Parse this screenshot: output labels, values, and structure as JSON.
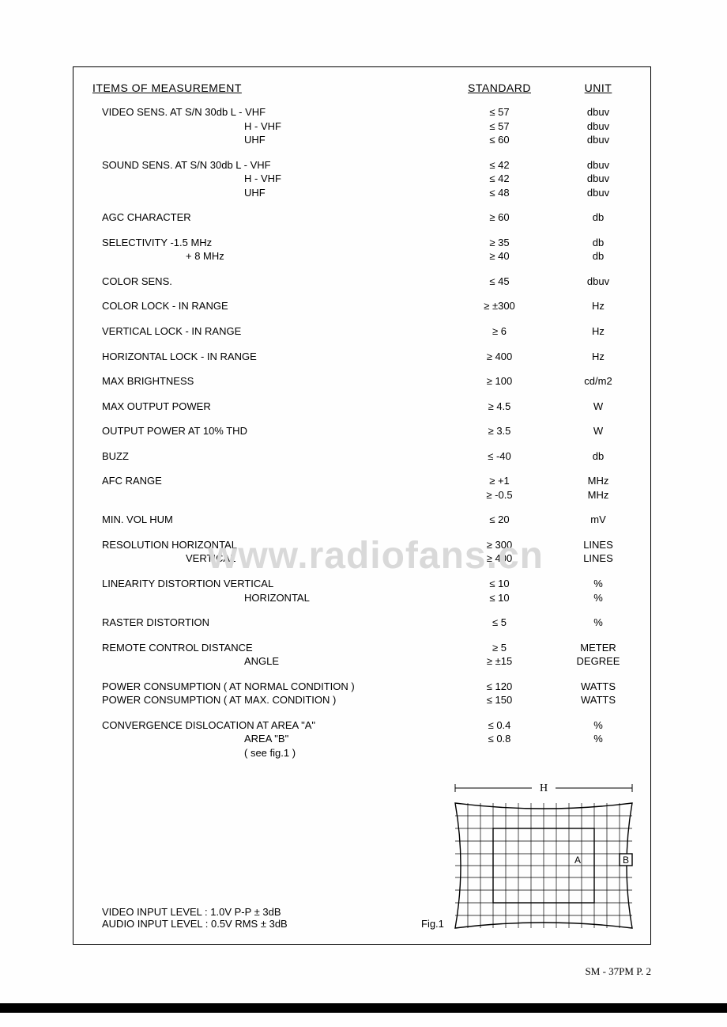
{
  "headers": {
    "items": "ITEMS  OF  MEASUREMENT",
    "standard": "STANDARD",
    "unit": "UNIT"
  },
  "rows": [
    {
      "c1": "VIDEO  SENS.  AT  S/N  30db  L - VHF",
      "c2": "≤ 57",
      "c3": "dbuv"
    },
    {
      "c1": "H - VHF",
      "c2": "≤ 57",
      "c3": "dbuv",
      "indent": true
    },
    {
      "c1": "UHF",
      "c2": "≤ 60",
      "c3": "dbuv",
      "indent": true,
      "gapAfter": true
    },
    {
      "c1": "SOUND  SENS.  AT  S/N  30db  L - VHF",
      "c2": "≤ 42",
      "c3": "dbuv"
    },
    {
      "c1": "H - VHF",
      "c2": "≤ 42",
      "c3": "dbuv",
      "indent": true
    },
    {
      "c1": "UHF",
      "c2": "≤ 48",
      "c3": "dbuv",
      "indent": true,
      "gapAfter": true
    },
    {
      "c1": "AGC  CHARACTER",
      "c2": "≥ 60",
      "c3": "db",
      "gapAfter": true
    },
    {
      "c1": "SELECTIVITY  -1.5 MHz",
      "c2": "≥ 35",
      "c3": "db"
    },
    {
      "c1": "+ 8 MHz",
      "c2": "≥ 40",
      "c3": "db",
      "indent2": true,
      "gapAfter": true
    },
    {
      "c1": "COLOR  SENS.",
      "c2": "≤ 45",
      "c3": "dbuv",
      "gapAfter": true
    },
    {
      "c1": "COLOR  LOCK - IN  RANGE",
      "c2": "≥ ±300",
      "c3": "Hz",
      "gapAfter": true
    },
    {
      "c1": "VERTICAL  LOCK - IN  RANGE",
      "c2": "≥ 6",
      "c3": "Hz",
      "gapAfter": true
    },
    {
      "c1": "HORIZONTAL  LOCK - IN  RANGE",
      "c2": "≥ 400",
      "c3": "Hz",
      "gapAfter": true
    },
    {
      "c1": "MAX  BRIGHTNESS",
      "c2": "≥ 100",
      "c3": "cd/m2",
      "gapAfter": true
    },
    {
      "c1": "MAX  OUTPUT  POWER",
      "c2": "≥ 4.5",
      "c3": "W",
      "gapAfter": true
    },
    {
      "c1": "OUTPUT  POWER  AT  10%  THD",
      "c2": "≥ 3.5",
      "c3": "W",
      "gapAfter": true
    },
    {
      "c1": "BUZZ",
      "c2": "≤ -40",
      "c3": "db",
      "gapAfter": true
    },
    {
      "c1": "AFC  RANGE",
      "c2": "≥ +1",
      "c3": "MHz"
    },
    {
      "c1": "",
      "c2": "≥ -0.5",
      "c3": "MHz",
      "gapAfter": true
    },
    {
      "c1": "MIN.  VOL  HUM",
      "c2": "≤ 20",
      "c3": "mV",
      "gapAfter": true
    },
    {
      "c1": "RESOLUTION  HORIZONTAL",
      "c2": "≥ 300",
      "c3": "LINES"
    },
    {
      "c1": "VERTICAL",
      "c2": "≥ 400",
      "c3": "LINES",
      "indent2": true,
      "gapAfter": true
    },
    {
      "c1": "LINEARITY  DISTORTION  VERTICAL",
      "c2": "≤ 10",
      "c3": "%"
    },
    {
      "c1": "HORIZONTAL",
      "c2": "≤ 10",
      "c3": "%",
      "indent": true,
      "gapAfter": true
    },
    {
      "c1": "RASTER  DISTORTION",
      "c2": "≤ 5",
      "c3": "%",
      "gapAfter": true
    },
    {
      "c1": "REMOTE  CONTROL  DISTANCE",
      "c2": "≥ 5",
      "c3": "METER"
    },
    {
      "c1": "ANGLE",
      "c2": "≥ ±15",
      "c3": "DEGREE",
      "indent": true,
      "gapAfter": true
    },
    {
      "c1": "POWER  CONSUMPTION ( AT NORMAL CONDITION )",
      "c2": "≤ 120",
      "c3": "WATTS"
    },
    {
      "c1": "POWER  CONSUMPTION ( AT MAX. CONDITION )",
      "c2": "≤ 150",
      "c3": "WATTS",
      "gapAfter": true
    },
    {
      "c1": "CONVERGENCE  DISLOCATION  AT  AREA  \"A\"",
      "c2": "≤ 0.4",
      "c3": "%"
    },
    {
      "c1": "AREA  \"B\"",
      "c2": "≤ 0.8",
      "c3": "%",
      "indent": true
    },
    {
      "c1": "( see  fig.1 )",
      "c2": "",
      "c3": "",
      "indent": true
    }
  ],
  "footer": {
    "line1": "VIDEO  INPUT  LEVEL :  1.0V P-P ± 3dB",
    "line2": "AUDIO  INPUT  LEVEL :  0.5V RMS ± 3dB"
  },
  "figLabel": "Fig.1",
  "figure": {
    "label_H": "H",
    "label_A": "A",
    "label_B": "B",
    "grid_cols": 14,
    "grid_rows": 10,
    "outer_w": 224,
    "outer_h": 160,
    "stroke": "#000000",
    "bg": "#ffffff"
  },
  "watermark": "www.radiofans.cn",
  "pageNum": "SM - 37PM  P.  2",
  "colors": {
    "text": "#000000",
    "border": "#000000",
    "bg": "#ffffff",
    "watermark": "#d9d9d9"
  }
}
